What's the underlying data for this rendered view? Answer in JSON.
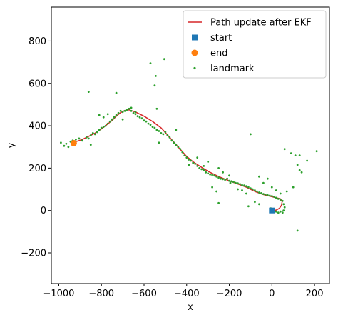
{
  "chart_data": {
    "type": "scatter",
    "xlabel": "x",
    "ylabel": "y",
    "xlim": [
      -1035,
      270
    ],
    "ylim": [
      -345,
      960
    ],
    "xticks": [
      -1000,
      -800,
      -600,
      -400,
      -200,
      0,
      200
    ],
    "yticks": [
      -200,
      0,
      200,
      400,
      600,
      800
    ],
    "grid": false,
    "legend_position": "top-right",
    "colors": {
      "path": "#d62728",
      "start": "#1f77b4",
      "end": "#ff7f0e",
      "landmark": "#2ca02c"
    },
    "series": [
      {
        "name": "Path update after EKF",
        "type": "line",
        "points": [
          [
            0,
            0
          ],
          [
            20,
            2
          ],
          [
            35,
            10
          ],
          [
            45,
            25
          ],
          [
            48,
            42
          ],
          [
            40,
            55
          ],
          [
            20,
            60
          ],
          [
            0,
            65
          ],
          [
            -40,
            75
          ],
          [
            -80,
            90
          ],
          [
            -120,
            110
          ],
          [
            -160,
            125
          ],
          [
            -200,
            140
          ],
          [
            -250,
            160
          ],
          [
            -300,
            185
          ],
          [
            -340,
            210
          ],
          [
            -370,
            230
          ],
          [
            -400,
            255
          ],
          [
            -440,
            300
          ],
          [
            -480,
            345
          ],
          [
            -520,
            390
          ],
          [
            -560,
            420
          ],
          [
            -600,
            445
          ],
          [
            -640,
            465
          ],
          [
            -670,
            475
          ],
          [
            -690,
            472
          ],
          [
            -710,
            462
          ],
          [
            -730,
            445
          ],
          [
            -750,
            425
          ],
          [
            -775,
            405
          ],
          [
            -800,
            385
          ],
          [
            -830,
            365
          ],
          [
            -860,
            350
          ],
          [
            -890,
            335
          ],
          [
            -920,
            325
          ],
          [
            -930,
            320
          ]
        ]
      },
      {
        "name": "start",
        "type": "scatter",
        "marker": "square",
        "points": [
          [
            0,
            0
          ]
        ]
      },
      {
        "name": "end",
        "type": "scatter",
        "marker": "circle",
        "points": [
          [
            -930,
            318
          ]
        ]
      },
      {
        "name": "landmark",
        "type": "scatter",
        "marker": "dot",
        "points": [
          [
            -990,
            320
          ],
          [
            -975,
            305
          ],
          [
            -965,
            315
          ],
          [
            -955,
            300
          ],
          [
            -945,
            325
          ],
          [
            -935,
            330
          ],
          [
            -920,
            335
          ],
          [
            -905,
            340
          ],
          [
            -890,
            330
          ],
          [
            -870,
            345
          ],
          [
            -860,
            340
          ],
          [
            -850,
            355
          ],
          [
            -840,
            365
          ],
          [
            -830,
            360
          ],
          [
            -820,
            370
          ],
          [
            -810,
            380
          ],
          [
            -800,
            390
          ],
          [
            -790,
            395
          ],
          [
            -780,
            400
          ],
          [
            -770,
            410
          ],
          [
            -760,
            420
          ],
          [
            -750,
            430
          ],
          [
            -740,
            440
          ],
          [
            -730,
            450
          ],
          [
            -720,
            460
          ],
          [
            -710,
            470
          ],
          [
            -700,
            465
          ],
          [
            -690,
            470
          ],
          [
            -680,
            475
          ],
          [
            -670,
            480
          ],
          [
            -660,
            470
          ],
          [
            -650,
            460
          ],
          [
            -640,
            455
          ],
          [
            -630,
            445
          ],
          [
            -620,
            440
          ],
          [
            -610,
            435
          ],
          [
            -600,
            425
          ],
          [
            -590,
            420
          ],
          [
            -580,
            410
          ],
          [
            -570,
            405
          ],
          [
            -560,
            395
          ],
          [
            -550,
            390
          ],
          [
            -540,
            380
          ],
          [
            -530,
            375
          ],
          [
            -520,
            365
          ],
          [
            -510,
            360
          ],
          [
            -500,
            370
          ],
          [
            -490,
            355
          ],
          [
            -480,
            345
          ],
          [
            -470,
            330
          ],
          [
            -460,
            320
          ],
          [
            -450,
            310
          ],
          [
            -440,
            300
          ],
          [
            -430,
            290
          ],
          [
            -420,
            275
          ],
          [
            -410,
            260
          ],
          [
            -400,
            250
          ],
          [
            -390,
            240
          ],
          [
            -380,
            235
          ],
          [
            -370,
            225
          ],
          [
            -360,
            220
          ],
          [
            -350,
            210
          ],
          [
            -340,
            200
          ],
          [
            -330,
            195
          ],
          [
            -320,
            190
          ],
          [
            -310,
            180
          ],
          [
            -300,
            175
          ],
          [
            -290,
            170
          ],
          [
            -280,
            168
          ],
          [
            -270,
            165
          ],
          [
            -260,
            160
          ],
          [
            -250,
            155
          ],
          [
            -240,
            150
          ],
          [
            -230,
            148
          ],
          [
            -220,
            145
          ],
          [
            -210,
            150
          ],
          [
            -200,
            140
          ],
          [
            -190,
            138
          ],
          [
            -180,
            135
          ],
          [
            -170,
            130
          ],
          [
            -160,
            128
          ],
          [
            -150,
            125
          ],
          [
            -140,
            120
          ],
          [
            -130,
            118
          ],
          [
            -120,
            115
          ],
          [
            -110,
            110
          ],
          [
            -100,
            105
          ],
          [
            -90,
            100
          ],
          [
            -80,
            95
          ],
          [
            -70,
            90
          ],
          [
            -60,
            85
          ],
          [
            -50,
            82
          ],
          [
            -40,
            78
          ],
          [
            -30,
            75
          ],
          [
            -20,
            72
          ],
          [
            -10,
            70
          ],
          [
            0,
            68
          ],
          [
            10,
            65
          ],
          [
            20,
            60
          ],
          [
            30,
            55
          ],
          [
            40,
            50
          ],
          [
            50,
            45
          ],
          [
            55,
            30
          ],
          [
            60,
            15
          ],
          [
            55,
            0
          ],
          [
            50,
            -10
          ],
          [
            40,
            -5
          ],
          [
            30,
            -10
          ],
          [
            20,
            -5
          ],
          [
            10,
            5
          ],
          [
            -5,
            10
          ],
          [
            -860,
            560
          ],
          [
            -730,
            555
          ],
          [
            -660,
            485
          ],
          [
            -570,
            695
          ],
          [
            -550,
            590
          ],
          [
            -545,
            635
          ],
          [
            -505,
            715
          ],
          [
            -540,
            480
          ],
          [
            -640,
            465
          ],
          [
            -700,
            430
          ],
          [
            -790,
            440
          ],
          [
            -770,
            455
          ],
          [
            -810,
            450
          ],
          [
            -850,
            310
          ],
          [
            -530,
            320
          ],
          [
            -450,
            380
          ],
          [
            -390,
            215
          ],
          [
            -350,
            250
          ],
          [
            -320,
            210
          ],
          [
            -300,
            230
          ],
          [
            -250,
            200
          ],
          [
            -230,
            180
          ],
          [
            -200,
            165
          ],
          [
            -195,
            130
          ],
          [
            -160,
            100
          ],
          [
            -140,
            95
          ],
          [
            -120,
            80
          ],
          [
            -100,
            360
          ],
          [
            -60,
            160
          ],
          [
            -40,
            130
          ],
          [
            -20,
            150
          ],
          [
            0,
            110
          ],
          [
            20,
            95
          ],
          [
            40,
            80
          ],
          [
            70,
            90
          ],
          [
            100,
            110
          ],
          [
            60,
            290
          ],
          [
            90,
            270
          ],
          [
            110,
            260
          ],
          [
            130,
            260
          ],
          [
            120,
            215
          ],
          [
            130,
            190
          ],
          [
            140,
            180
          ],
          [
            165,
            235
          ],
          [
            210,
            280
          ],
          [
            120,
            -95
          ],
          [
            -110,
            20
          ],
          [
            -80,
            40
          ],
          [
            -60,
            30
          ],
          [
            -250,
            35
          ],
          [
            -260,
            90
          ],
          [
            -280,
            110
          ]
        ]
      }
    ]
  }
}
